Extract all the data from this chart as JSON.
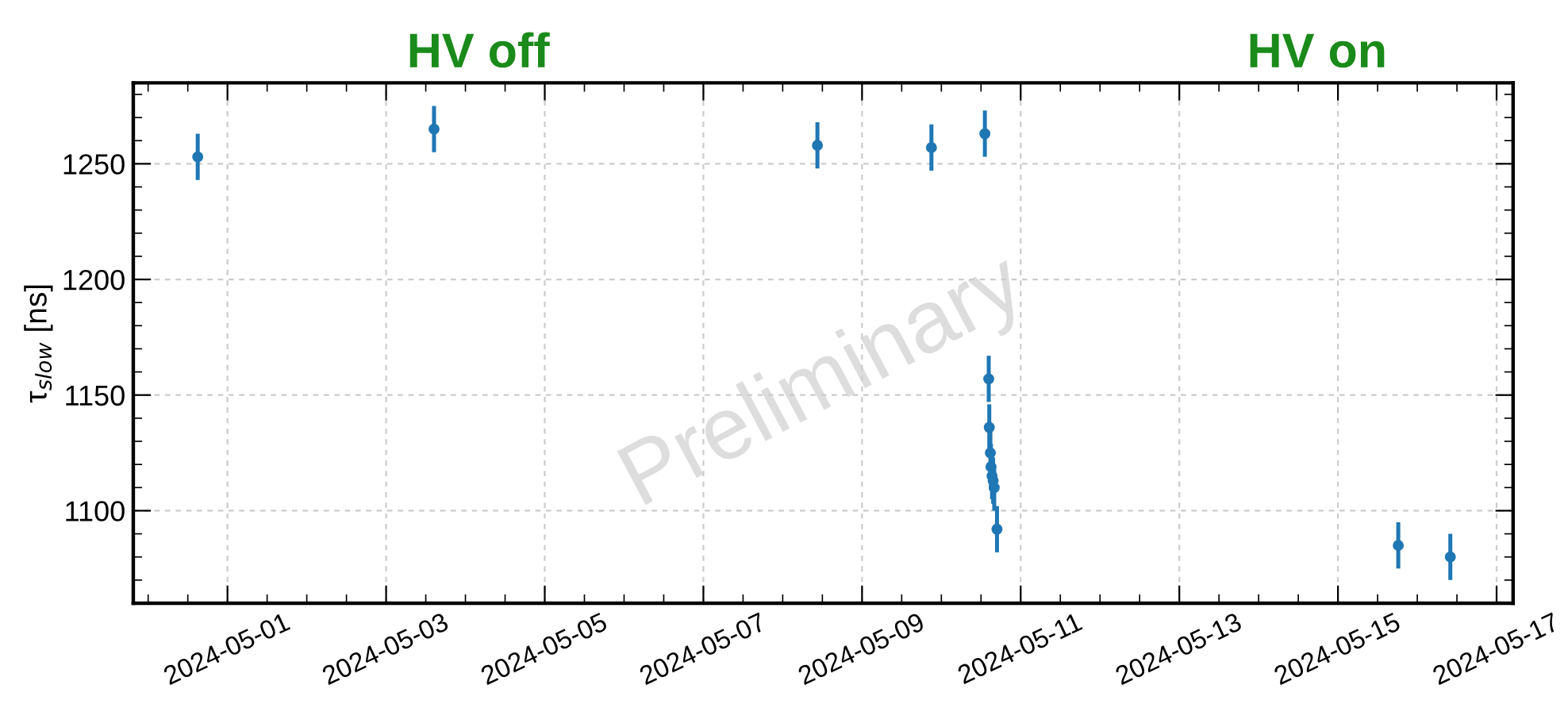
{
  "chart_data": {
    "type": "scatter",
    "ylabel": "τ$_{slow}$ [ns]",
    "annotations": [
      "HV off",
      "HV on",
      "Preliminary"
    ],
    "x": [
      "2024-04-30T15:00",
      "2024-05-03T14:30",
      "2024-05-08T10:30",
      "2024-05-09T21:00",
      "2024-05-10T13:10",
      "2024-05-10T14:20",
      "2024-05-10T14:30",
      "2024-05-10T14:50",
      "2024-05-10T15:00",
      "2024-05-10T15:20",
      "2024-05-10T15:40",
      "2024-05-10T16:00",
      "2024-05-10T16:50",
      "2024-05-15T18:15",
      "2024-05-16T10:00"
    ],
    "series": [
      {
        "color": "#1f77b4",
        "values": [
          1253,
          1265,
          1258,
          1257,
          1263,
          1157,
          1136,
          1125,
          1119,
          1115,
          1113,
          1110,
          1092,
          1085,
          1080
        ],
        "errors": [
          10,
          10,
          10,
          10,
          10,
          10,
          10,
          10,
          10,
          10,
          10,
          10,
          10,
          10,
          10
        ]
      }
    ],
    "marker": "circle",
    "grid": true,
    "xlim": [
      "2024-04-29T19:30",
      "2024-05-17T05:00"
    ],
    "xticks": [
      "2024-05-01",
      "2024-05-03",
      "2024-05-05",
      "2024-05-07",
      "2024-05-09",
      "2024-05-11",
      "2024-05-13",
      "2024-05-15",
      "2024-05-17"
    ],
    "ylim": [
      1060,
      1285
    ],
    "yticks": [
      1100,
      1150,
      1200,
      1250
    ]
  }
}
